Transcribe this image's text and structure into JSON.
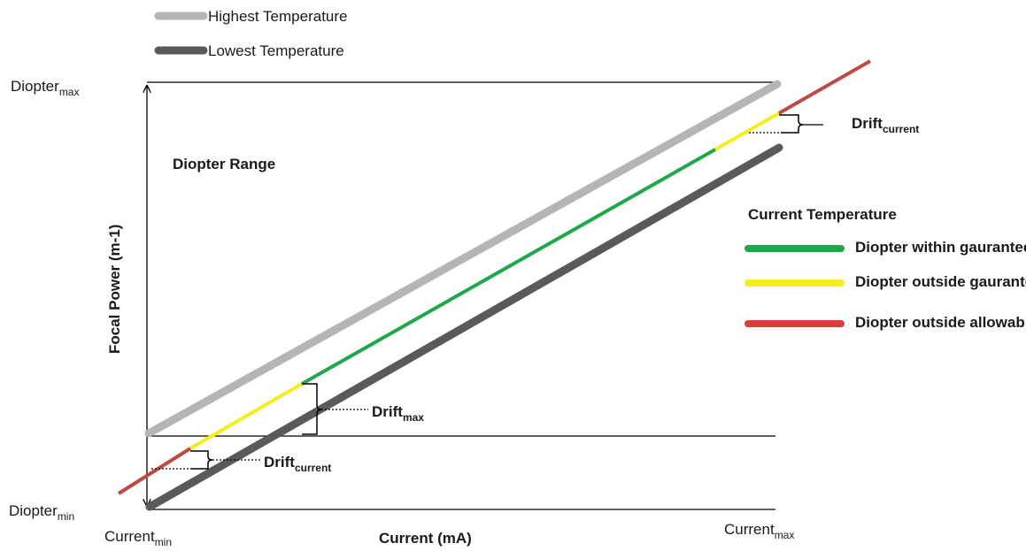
{
  "legend_top": {
    "highest": {
      "label": "Highest Temperature",
      "color": "#b5b5b5"
    },
    "lowest": {
      "label": "Lowest Temperature",
      "color": "#5a5a5a"
    }
  },
  "axis": {
    "y_label": "Focal Power (m-1)",
    "x_label": "Current (mA)",
    "diopter_max": {
      "main": "Diopter",
      "sub": "max"
    },
    "diopter_min": {
      "main": "Diopter",
      "sub": "min"
    },
    "current_min": {
      "main": "Current",
      "sub": "min"
    },
    "current_max": {
      "main": "Current",
      "sub": "max"
    }
  },
  "range_label": "Diopter Range",
  "drift_max": {
    "main": "Drift",
    "sub": "max"
  },
  "drift_current_low": {
    "main": "Drift",
    "sub": "current"
  },
  "drift_current_high": {
    "main": "Drift",
    "sub": "current"
  },
  "current_temperature": {
    "title": "Current Temperature",
    "items": [
      {
        "label": "Diopter within gauranteed range",
        "color": "#1fa84a"
      },
      {
        "label": "Diopter outside gauranteed range",
        "color": "#f5ee1e"
      },
      {
        "label": "Diopter outside allowable range",
        "color": "#e23a3a"
      }
    ]
  },
  "colors": {
    "highest_line": "#b5b5b5",
    "lowest_line": "#5a5a5a",
    "green_segment": "#1fa84a",
    "yellow_segment": "#f5ee1e",
    "red_segment": "#bf4a45"
  }
}
